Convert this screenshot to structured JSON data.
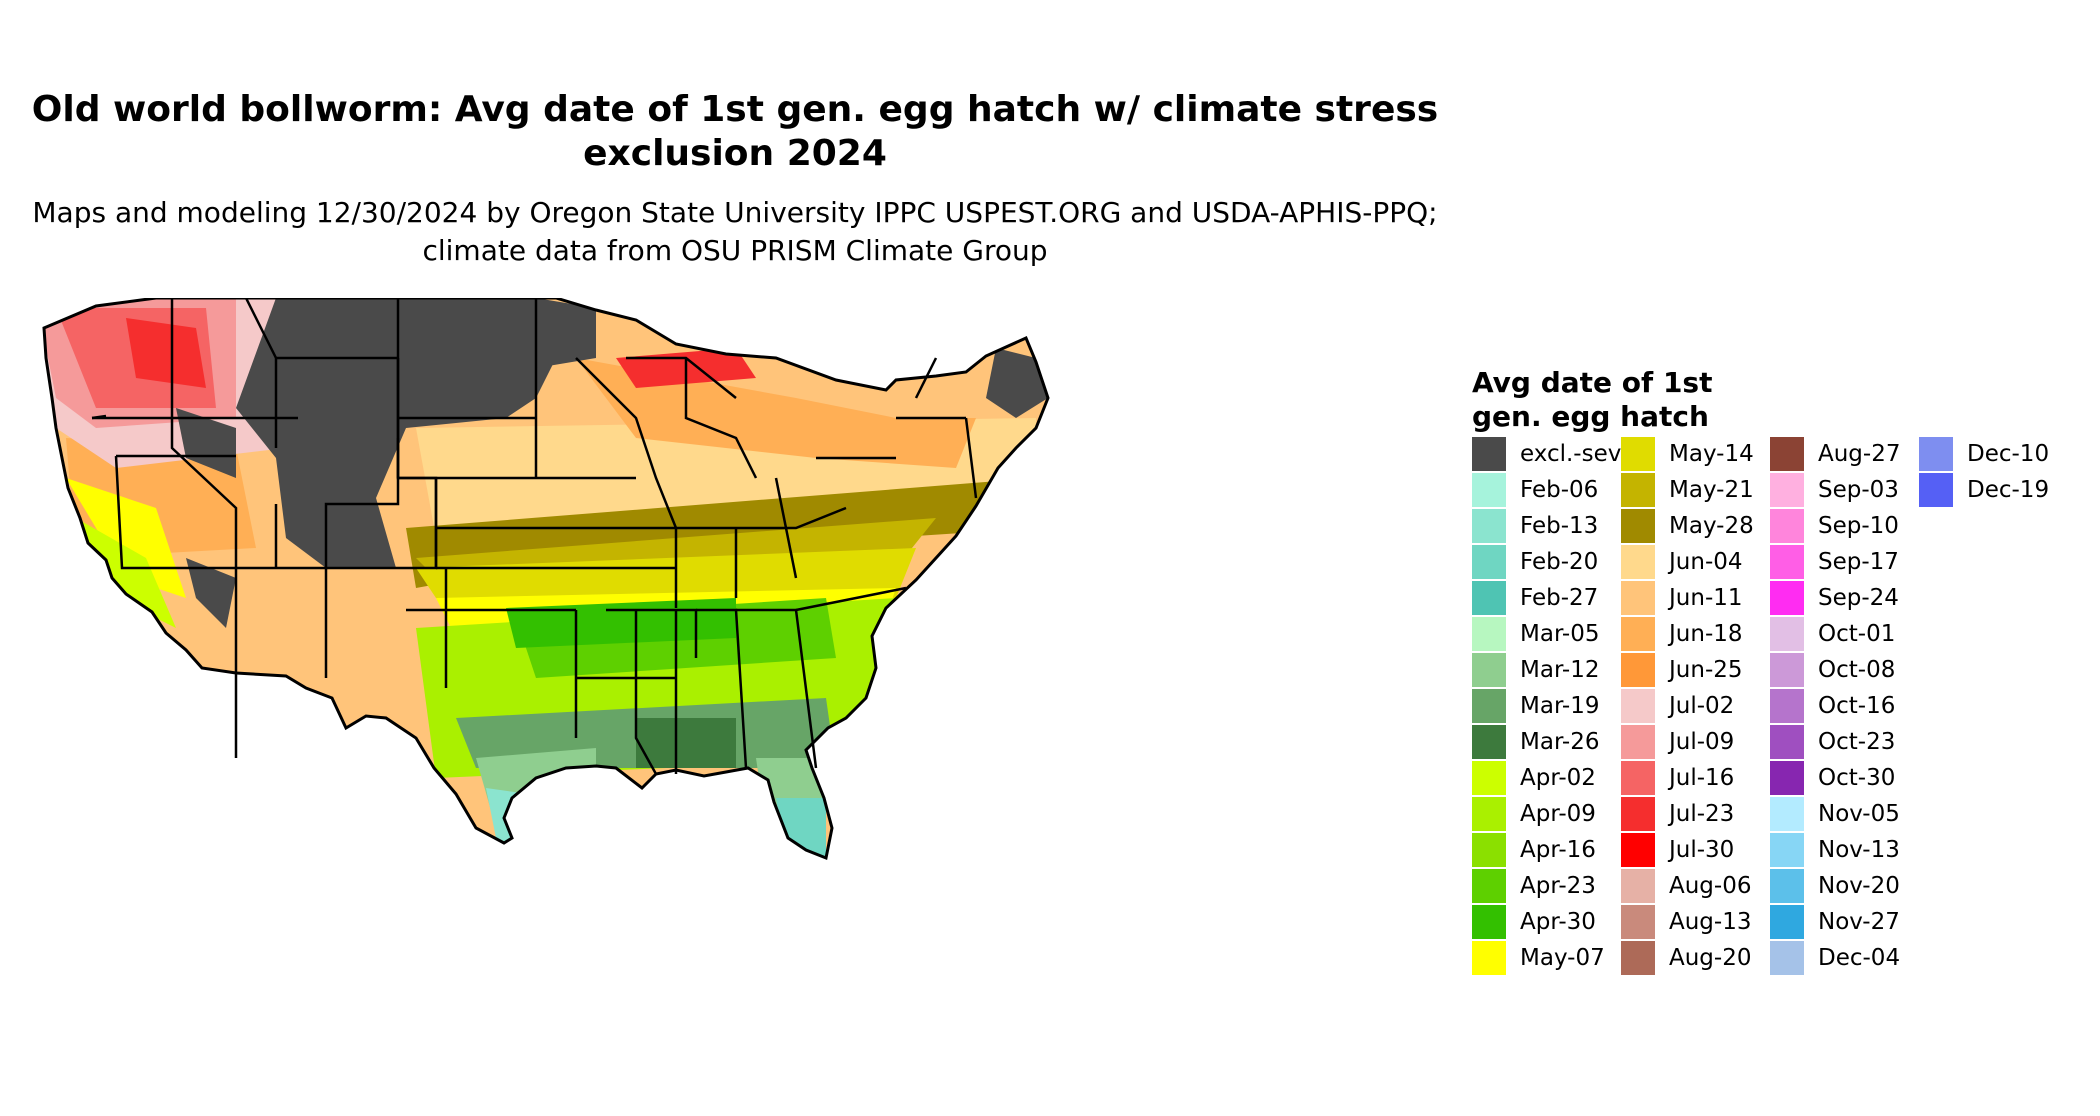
{
  "title": "Old world bollworm: Avg date of 1st gen. egg hatch w/ climate stress exclusion 2024",
  "subtitle": "Maps and modeling 12/30/2024 by Oregon State University IPPC USPEST.ORG and USDA-APHIS-PPQ; climate data from OSU PRISM Climate Group",
  "legend": {
    "title": "Avg date of 1st gen. egg hatch",
    "columns": [
      [
        {
          "label": "excl.-sev.",
          "color": "#4a4a4a"
        },
        {
          "label": "Feb-06",
          "color": "#a6f3dc"
        },
        {
          "label": "Feb-13",
          "color": "#8be4cf"
        },
        {
          "label": "Feb-20",
          "color": "#6fd6c2"
        },
        {
          "label": "Feb-27",
          "color": "#4fc4b3"
        },
        {
          "label": "Mar-05",
          "color": "#b7f7c0"
        },
        {
          "label": "Mar-12",
          "color": "#8fce8f"
        },
        {
          "label": "Mar-19",
          "color": "#67a567"
        },
        {
          "label": "Mar-26",
          "color": "#3d7a3d"
        },
        {
          "label": "Apr-02",
          "color": "#ccff00"
        },
        {
          "label": "Apr-09",
          "color": "#aaf000"
        },
        {
          "label": "Apr-16",
          "color": "#8be000"
        },
        {
          "label": "Apr-23",
          "color": "#5ed000"
        },
        {
          "label": "Apr-30",
          "color": "#33c000"
        },
        {
          "label": "May-07",
          "color": "#ffff00"
        }
      ],
      [
        {
          "label": "May-14",
          "color": "#e0dc00"
        },
        {
          "label": "May-21",
          "color": "#c4b400"
        },
        {
          "label": "May-28",
          "color": "#a08a00"
        },
        {
          "label": "Jun-04",
          "color": "#ffd98c"
        },
        {
          "label": "Jun-11",
          "color": "#ffc47a"
        },
        {
          "label": "Jun-18",
          "color": "#ffaf55"
        },
        {
          "label": "Jun-25",
          "color": "#ff9838"
        },
        {
          "label": "Jul-02",
          "color": "#f5c9c9"
        },
        {
          "label": "Jul-09",
          "color": "#f59a9a"
        },
        {
          "label": "Jul-16",
          "color": "#f56464"
        },
        {
          "label": "Jul-23",
          "color": "#f52e2e"
        },
        {
          "label": "Jul-30",
          "color": "#ff0000"
        },
        {
          "label": "Aug-06",
          "color": "#e6b1a6"
        },
        {
          "label": "Aug-13",
          "color": "#c98a7c"
        },
        {
          "label": "Aug-20",
          "color": "#ad6a58"
        }
      ],
      [
        {
          "label": "Aug-27",
          "color": "#8b4334"
        },
        {
          "label": "Sep-03",
          "color": "#ffb0e0"
        },
        {
          "label": "Sep-10",
          "color": "#ff85dc"
        },
        {
          "label": "Sep-17",
          "color": "#ff5ee6"
        },
        {
          "label": "Sep-24",
          "color": "#ff2cf2"
        },
        {
          "label": "Oct-01",
          "color": "#e2bfe5"
        },
        {
          "label": "Oct-08",
          "color": "#cc99d8"
        },
        {
          "label": "Oct-16",
          "color": "#b574cc"
        },
        {
          "label": "Oct-23",
          "color": "#9f4fc0"
        },
        {
          "label": "Oct-30",
          "color": "#8726b0"
        },
        {
          "label": "Nov-05",
          "color": "#b3ebff"
        },
        {
          "label": "Nov-13",
          "color": "#87d6f5"
        },
        {
          "label": "Nov-20",
          "color": "#5cc0ea"
        },
        {
          "label": "Nov-27",
          "color": "#2fa8e0"
        },
        {
          "label": "Dec-04",
          "color": "#a5c2e8"
        }
      ],
      [
        {
          "label": "Dec-10",
          "color": "#7e8ef0"
        },
        {
          "label": "Dec-19",
          "color": "#5560f5"
        }
      ]
    ]
  }
}
